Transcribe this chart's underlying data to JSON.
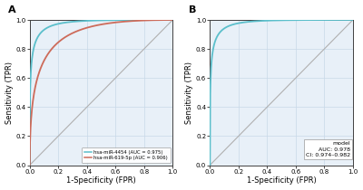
{
  "panel_A": {
    "label": "A",
    "curve1_color": "#5bbfcb",
    "curve2_color": "#cd6b5a",
    "diagonal_color": "#b0b0b0",
    "legend": [
      {
        "label": "hsa-miR-4454 (AUC = 0.975)",
        "color": "#5bbfcb"
      },
      {
        "label": "hsa-miR-619-5p (AUC = 0.906)",
        "color": "#cd6b5a"
      }
    ],
    "xlabel": "1-Specificity (FPR)",
    "ylabel": "Sensitivity (TPR)",
    "xlim": [
      0.0,
      1.0
    ],
    "ylim": [
      0.0,
      1.0
    ],
    "xticks": [
      0.0,
      0.2,
      0.4,
      0.6,
      0.8,
      1.0
    ],
    "yticks": [
      0.0,
      0.2,
      0.4,
      0.6,
      0.8,
      1.0
    ],
    "grid_color": "#c8d8e8",
    "bg_color": "#e8f0f8"
  },
  "panel_B": {
    "label": "B",
    "curve_color": "#5bbfcb",
    "diagonal_color": "#b0b0b0",
    "annotation_lines": [
      "model",
      "AUC: 0.978",
      "CI: 0.974–0.982"
    ],
    "xlabel": "1-Specificity (FPR)",
    "ylabel": "Sensitivity (TPR)",
    "xlim": [
      0.0,
      1.0
    ],
    "ylim": [
      0.0,
      1.0
    ],
    "xticks": [
      0.0,
      0.2,
      0.4,
      0.6,
      0.8,
      1.0
    ],
    "yticks": [
      0.0,
      0.2,
      0.4,
      0.6,
      0.8,
      1.0
    ],
    "grid_color": "#c8d8e8",
    "bg_color": "#e8f0f8"
  }
}
